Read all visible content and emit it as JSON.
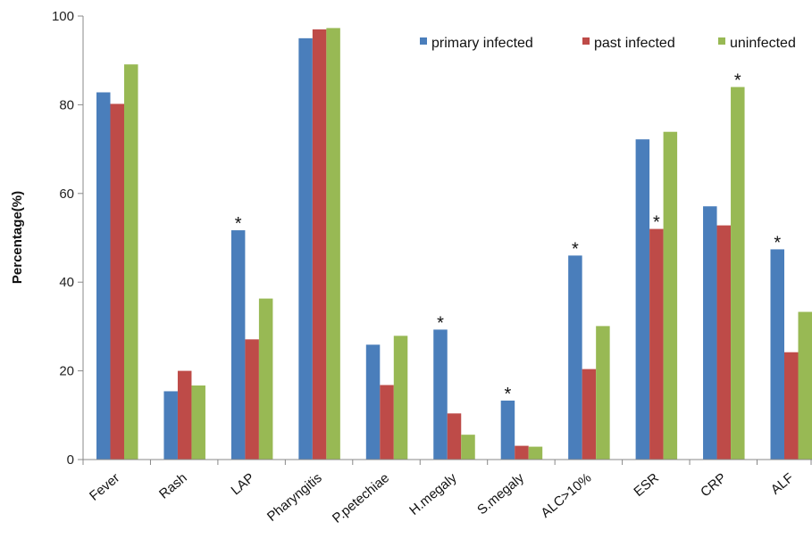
{
  "chart_data": {
    "type": "bar",
    "title": "",
    "xlabel": "",
    "ylabel": "Percentage(%)",
    "ylim": [
      0,
      100
    ],
    "yticks": [
      0,
      20,
      40,
      60,
      80,
      100
    ],
    "grid": false,
    "legend_position": "top-right",
    "categories": [
      "Fever",
      "Rash",
      "LAP",
      "Pharyngitis",
      "P.petechiae",
      "H.megaly",
      "S.megaly",
      "ALC>10%",
      "ESR",
      "CRP",
      "ALF"
    ],
    "series": [
      {
        "name": "primary infected",
        "color": "#4a7ebb",
        "values": [
          82.8,
          15.4,
          51.7,
          95.0,
          25.9,
          29.3,
          13.3,
          46.0,
          72.2,
          57.1,
          47.4
        ]
      },
      {
        "name": "past infected",
        "color": "#be4b48",
        "values": [
          80.2,
          20.0,
          27.1,
          97.0,
          16.8,
          10.4,
          3.1,
          20.4,
          52.0,
          52.8,
          24.2
        ]
      },
      {
        "name": "uninfected",
        "color": "#98b954",
        "values": [
          89.1,
          16.7,
          36.3,
          97.3,
          27.9,
          5.6,
          2.9,
          30.1,
          73.9,
          84.0,
          33.3
        ]
      }
    ],
    "annotations": [
      {
        "text": "*",
        "category": "LAP",
        "series": 0
      },
      {
        "text": "*",
        "category": "H.megaly",
        "series": 0
      },
      {
        "text": "*",
        "category": "S.megaly",
        "series": 0
      },
      {
        "text": "*",
        "category": "ALC>10%",
        "series": 0
      },
      {
        "text": "*",
        "category": "ESR",
        "series": 1
      },
      {
        "text": "*",
        "category": "CRP",
        "series": 2
      },
      {
        "text": "*",
        "category": "ALF",
        "series": 0
      }
    ]
  }
}
